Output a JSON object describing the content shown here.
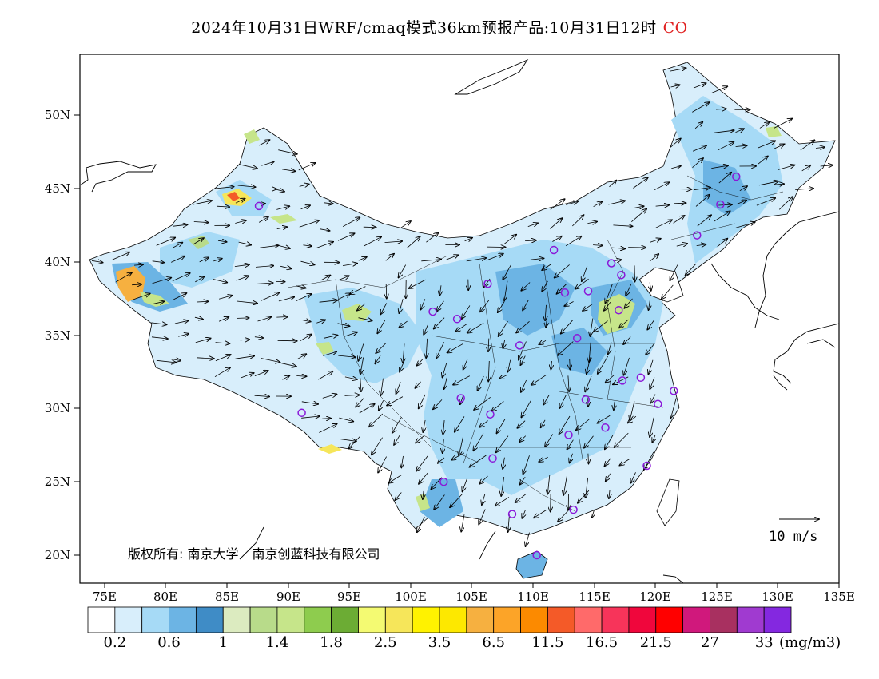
{
  "title": {
    "text": "2024年10月31日WRF/cmaq模式36km预报产品:10月31日12时",
    "species": "CO"
  },
  "axes": {
    "lat_labels": [
      "50N",
      "45N",
      "40N",
      "35N",
      "30N",
      "25N",
      "20N"
    ],
    "lat_values": [
      50,
      45,
      40,
      35,
      30,
      25,
      20
    ],
    "lon_labels": [
      "75E",
      "80E",
      "85E",
      "90E",
      "95E",
      "100E",
      "105E",
      "110E",
      "115E",
      "120E",
      "125E",
      "130E",
      "135E"
    ],
    "lon_values": [
      75,
      80,
      85,
      90,
      95,
      100,
      105,
      110,
      115,
      120,
      125,
      130,
      135
    ],
    "lon_range": [
      73,
      135
    ],
    "lat_range": [
      18,
      54
    ]
  },
  "copyright": {
    "owner1": "版权所有: 南京大学",
    "owner2": "南京创蓝科技有限公司"
  },
  "wind_reference": {
    "label": "10 m/s"
  },
  "colorbar": {
    "colors": [
      "#ffffff",
      "#d8eefb",
      "#a6daf6",
      "#6cb4e4",
      "#3f8cc6",
      "#dcebc0",
      "#b8db8a",
      "#c6e58a",
      "#8ecc4e",
      "#6cac34",
      "#f4fa72",
      "#f6e65a",
      "#fff200",
      "#fde800",
      "#f6b040",
      "#fca428",
      "#fc8a00",
      "#f45a28",
      "#ff6a6a",
      "#f7345a",
      "#f0063c",
      "#ff0000",
      "#d0187c",
      "#a83060",
      "#a03ad0",
      "#8428e0"
    ],
    "labels": [
      "0.2",
      "0.6",
      "1",
      "1.4",
      "1.8",
      "2.5",
      "3.5",
      "6.5",
      "11.5",
      "16.5",
      "21.5",
      "27",
      "33"
    ],
    "unit": "(mg/m3)"
  },
  "stations": [
    [
      87.6,
      43.8
    ],
    [
      91.1,
      29.7
    ],
    [
      101.8,
      36.6
    ],
    [
      103.8,
      36.1
    ],
    [
      106.3,
      38.5
    ],
    [
      111.7,
      40.8
    ],
    [
      112.6,
      37.9
    ],
    [
      114.5,
      38.0
    ],
    [
      116.4,
      39.9
    ],
    [
      117.2,
      39.1
    ],
    [
      117.0,
      36.7
    ],
    [
      113.6,
      34.8
    ],
    [
      108.9,
      34.3
    ],
    [
      104.1,
      30.7
    ],
    [
      106.5,
      29.6
    ],
    [
      106.7,
      26.6
    ],
    [
      102.7,
      25.0
    ],
    [
      108.3,
      22.8
    ],
    [
      113.3,
      23.1
    ],
    [
      110.3,
      20.0
    ],
    [
      112.9,
      28.2
    ],
    [
      114.3,
      30.6
    ],
    [
      115.9,
      28.7
    ],
    [
      117.3,
      31.9
    ],
    [
      118.8,
      32.1
    ],
    [
      120.2,
      30.3
    ],
    [
      121.5,
      31.2
    ],
    [
      119.3,
      26.1
    ],
    [
      123.4,
      41.8
    ],
    [
      125.3,
      43.9
    ],
    [
      126.6,
      45.8
    ]
  ],
  "markers": [
    "lat-tick-50n",
    "lat-tick-45n",
    "lat-tick-40n",
    "lat-tick-35n",
    "lat-tick-30n",
    "lat-tick-25n",
    "lat-tick-20n",
    "lon-tick-75e",
    "lon-tick-80e",
    "lon-tick-85e",
    "lon-tick-90e",
    "lon-tick-95e",
    "lon-tick-100e",
    "lon-tick-105e",
    "lon-tick-110e",
    "lon-tick-115e",
    "lon-tick-120e",
    "lon-tick-125e",
    "lon-tick-130e",
    "lon-tick-135e"
  ]
}
